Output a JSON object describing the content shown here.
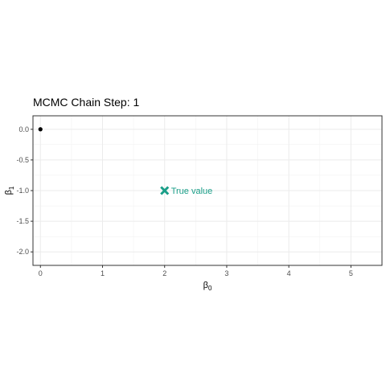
{
  "chart_data": {
    "type": "scatter",
    "title": "MCMC Chain Step: 1",
    "xlabel": {
      "base": "β",
      "sub": "0"
    },
    "ylabel": {
      "base": "β",
      "sub": "1"
    },
    "xlim": [
      -0.12,
      5.5
    ],
    "ylim": [
      -2.22,
      0.22
    ],
    "x_ticks": [
      0,
      1,
      2,
      3,
      4,
      5
    ],
    "x_tick_labels": [
      "0",
      "1",
      "2",
      "3",
      "4",
      "5"
    ],
    "y_ticks": [
      0.0,
      -0.5,
      -1.0,
      -1.5,
      -2.0
    ],
    "y_tick_labels": [
      "0.0",
      "-0.5",
      "-1.0",
      "-1.5",
      "-2.0"
    ],
    "grid": true,
    "series": [
      {
        "points": [
          {
            "x": 0,
            "y": 0
          }
        ],
        "color": "#000000",
        "marker": "circle"
      }
    ],
    "annotations": [
      {
        "x": 2,
        "y": -1,
        "marker": "cross",
        "label": "True value",
        "color": "#1a9e88"
      }
    ]
  }
}
